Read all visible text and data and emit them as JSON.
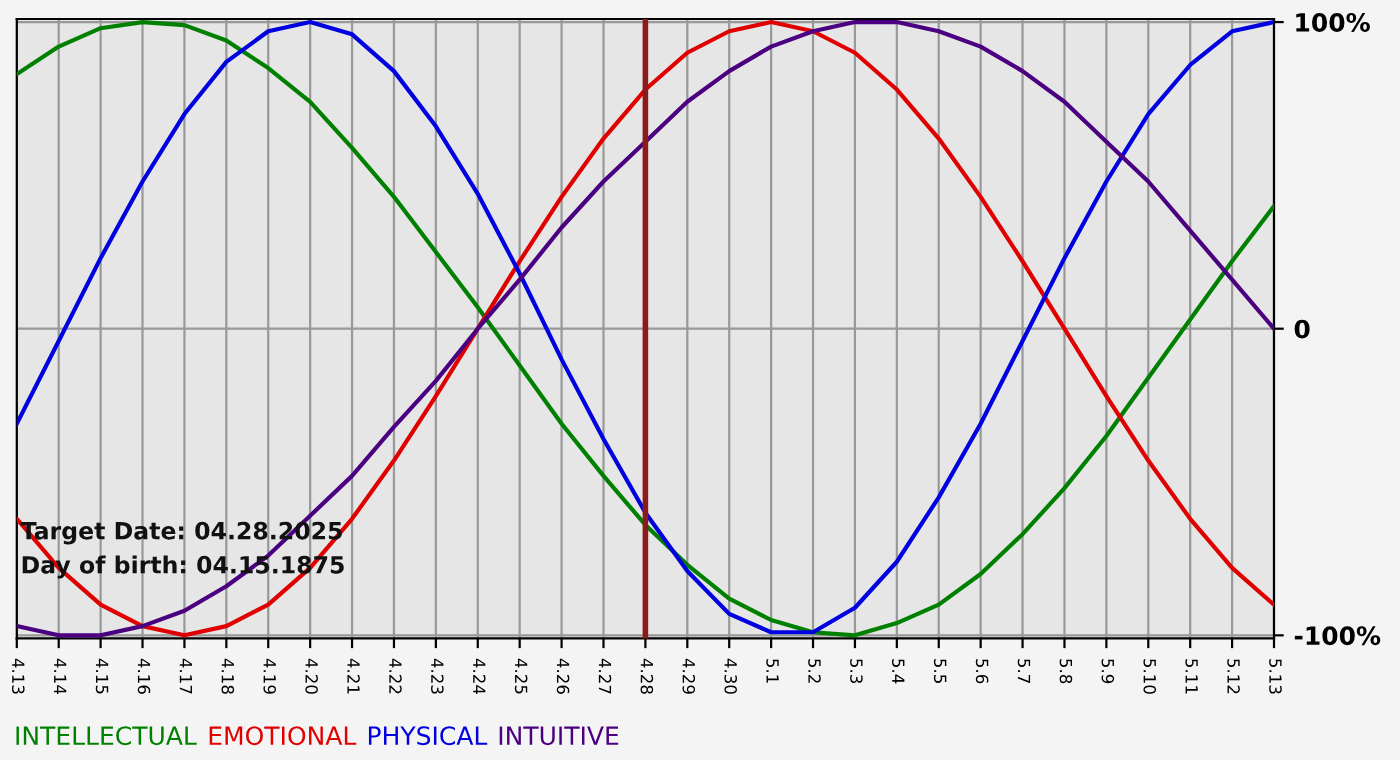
{
  "chart_data": {
    "type": "line",
    "categories": [
      "4.13",
      "4.14",
      "4.15",
      "4.16",
      "4.17",
      "4.18",
      "4.19",
      "4.20",
      "4.21",
      "4.22",
      "4.23",
      "4.24",
      "4.25",
      "4.26",
      "4.27",
      "4.28",
      "4.29",
      "4.30",
      "5.1",
      "5.2",
      "5.3",
      "5.4",
      "5.5",
      "5.6",
      "5.7",
      "5.8",
      "5.9",
      "5.10",
      "5.11",
      "5.12",
      "5.13"
    ],
    "series": [
      {
        "name": "INTELLECTUAL",
        "color": "#008000",
        "values": [
          83,
          92,
          98,
          100,
          99,
          94,
          85,
          74,
          59,
          43,
          25,
          7,
          -12,
          -31,
          -48,
          -64,
          -77,
          -88,
          -95,
          -99,
          -100,
          -96,
          -90,
          -80,
          -67,
          -52,
          -35,
          -16,
          3,
          22,
          40
        ]
      },
      {
        "name": "EMOTIONAL",
        "color": "#e00000",
        "values": [
          -62,
          -78,
          -90,
          -97,
          -100,
          -97,
          -90,
          -78,
          -62,
          -43,
          -22,
          0,
          22,
          43,
          62,
          78,
          90,
          97,
          100,
          97,
          90,
          78,
          62,
          43,
          22,
          0,
          -22,
          -43,
          -62,
          -78,
          -90
        ]
      },
      {
        "name": "PHYSICAL",
        "color": "#0000e0",
        "values": [
          -31,
          -4,
          23,
          48,
          70,
          87,
          97,
          100,
          96,
          84,
          66,
          44,
          18,
          -10,
          -36,
          -60,
          -79,
          -93,
          -99,
          -99,
          -91,
          -76,
          -55,
          -31,
          -4,
          23,
          48,
          70,
          86,
          97,
          100
        ]
      },
      {
        "name": "INTUITIVE",
        "color": "#4b0082",
        "values": [
          -97,
          -100,
          -100,
          -97,
          -92,
          -84,
          -74,
          -61,
          -48,
          -32,
          -17,
          0,
          16,
          33,
          48,
          61,
          74,
          84,
          92,
          97,
          100,
          100,
          97,
          92,
          84,
          74,
          61,
          48,
          32,
          16,
          0
        ]
      }
    ],
    "ylim": [
      -101,
      101
    ],
    "yticks": [
      {
        "value": 100,
        "label": "100%"
      },
      0,
      {
        "value": -100,
        "label": "-100%"
      }
    ],
    "grid": true,
    "legend": "bottom left",
    "marker": "none",
    "line_style": "solid",
    "ref_lines": [
      {
        "axis": "x",
        "value": "4.28",
        "color": "#8b1a1a"
      }
    ],
    "annotations": [
      "Target Date: 04.28.2025",
      "Day of birth: 04.15.1875"
    ]
  }
}
